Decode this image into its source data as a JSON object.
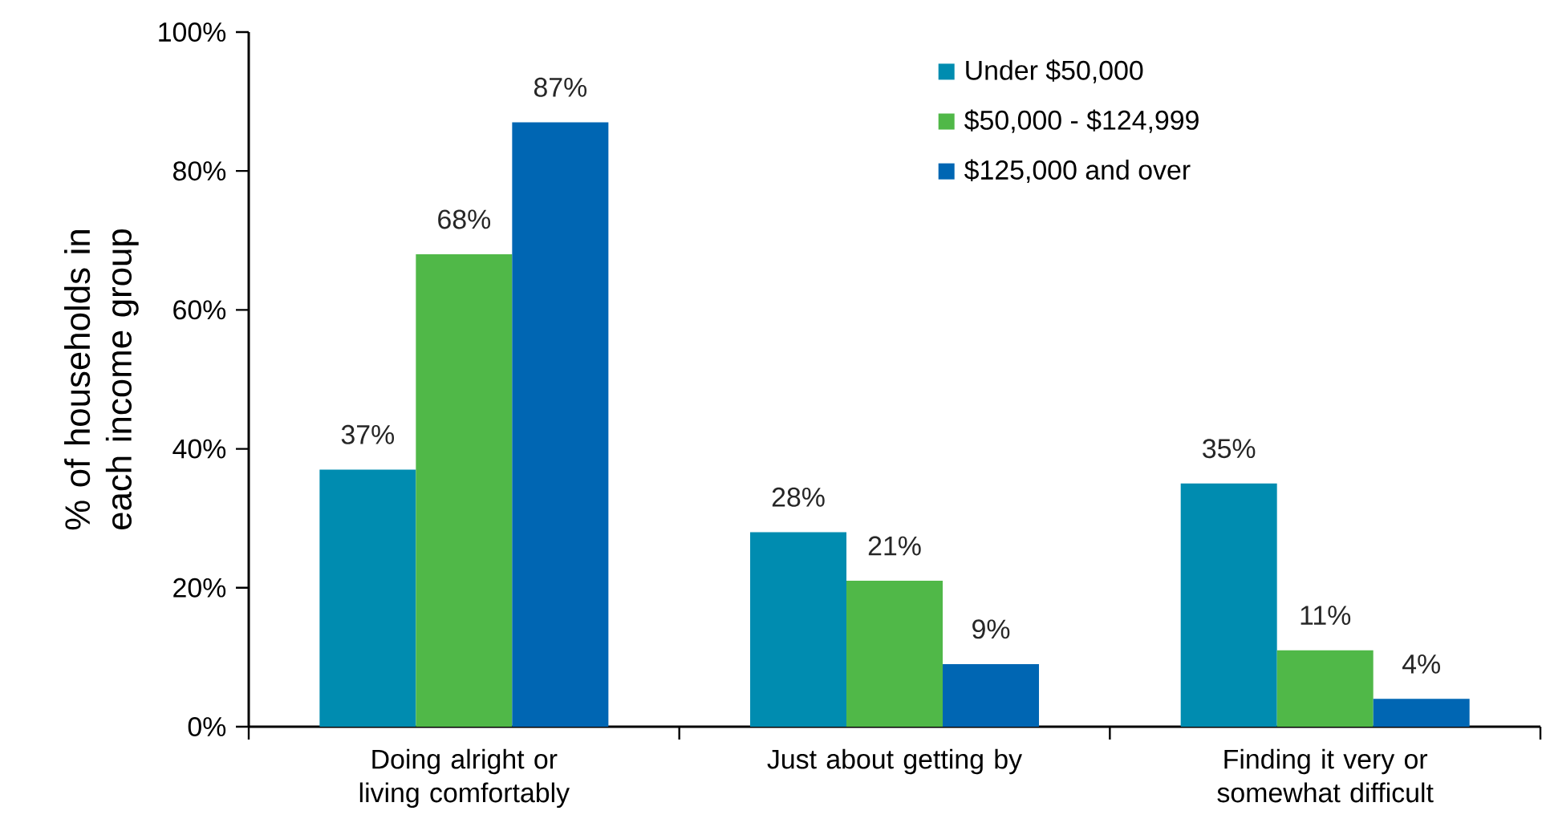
{
  "chart_data": {
    "type": "bar",
    "ylabel": "% of households in each income group",
    "categories": [
      "Doing alright or living comfortably",
      "Just about getting by",
      "Finding it very or somewhat difficult"
    ],
    "series": [
      {
        "name": "Under $50,000",
        "color": "#008cb0",
        "values": [
          37,
          28,
          35
        ],
        "value_labels": [
          "37%",
          "28%",
          "35%"
        ]
      },
      {
        "name": "$50,000 - $124,999",
        "color": "#50b848",
        "values": [
          68,
          21,
          11
        ],
        "value_labels": [
          "68%",
          "21%",
          "11%"
        ]
      },
      {
        "name": "$125,000 and over",
        "color": "#0066b3",
        "values": [
          87,
          9,
          4
        ],
        "value_labels": [
          "87%",
          "9%",
          "4%"
        ]
      }
    ],
    "ylim": [
      0,
      100
    ],
    "yticks": [
      {
        "value": 0,
        "label": "0%"
      },
      {
        "value": 20,
        "label": "20%"
      },
      {
        "value": 40,
        "label": "40%"
      },
      {
        "value": 60,
        "label": "60%"
      },
      {
        "value": 80,
        "label": "80%"
      },
      {
        "value": 100,
        "label": "100%"
      }
    ],
    "grid": false,
    "legend": "top right"
  }
}
